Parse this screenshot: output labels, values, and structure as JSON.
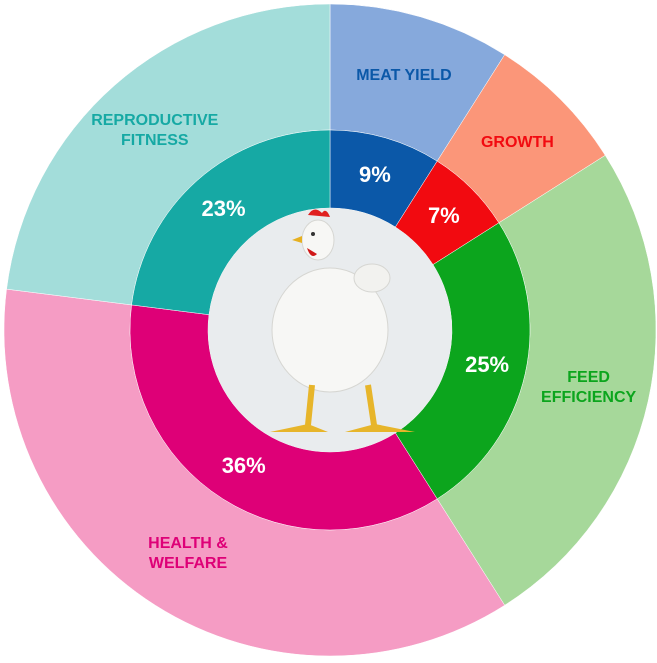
{
  "chart_data": {
    "type": "donut",
    "categories": [
      "MEAT YIELD",
      "GROWTH",
      "FEED EFFICIENCY",
      "HEALTH & WELFARE",
      "REPRODUCTIVE FITNESS"
    ],
    "values": [
      9,
      7,
      25,
      36,
      23
    ],
    "value_labels": [
      "9%",
      "7%",
      "25%",
      "36%",
      "23%"
    ],
    "colors": [
      "#0b58a8",
      "#f20a10",
      "#0ca51d",
      "#de0077",
      "#16a9a4"
    ],
    "outer_colors": [
      "#86a9dc",
      "#fb9679",
      "#a6d89a",
      "#f59cc4",
      "#a3ddda"
    ]
  }
}
